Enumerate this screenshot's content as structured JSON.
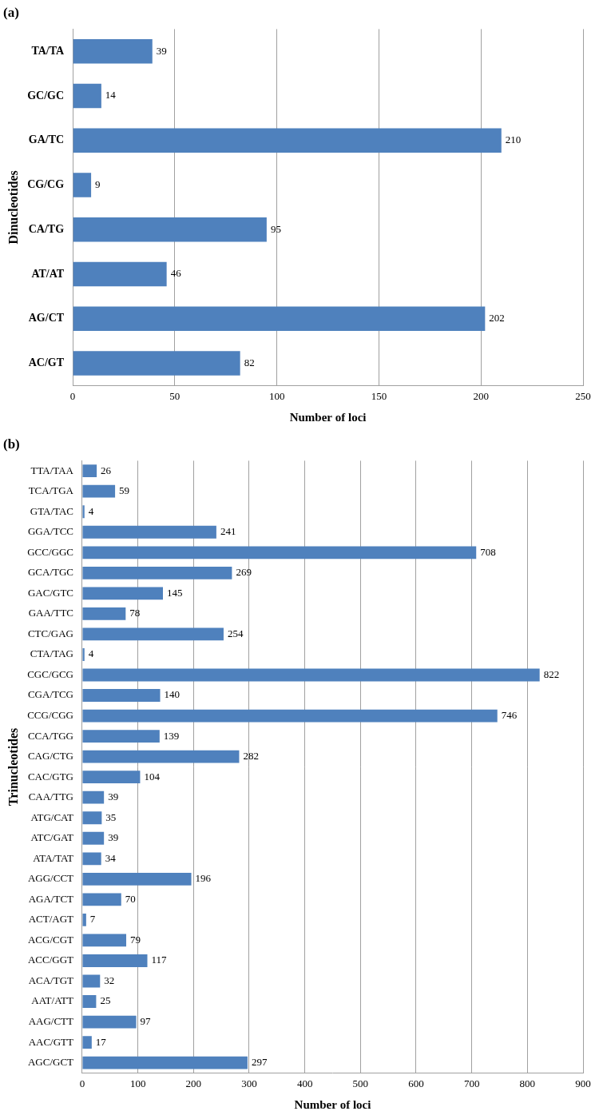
{
  "chart_data": [
    {
      "type": "bar",
      "title": "(a)",
      "orientation": "horizontal",
      "xlabel": "Number of loci",
      "ylabel": "Dinucleotides",
      "categories": [
        "TA/TA",
        "GC/GC",
        "GA/TC",
        "CG/CG",
        "CA/TG",
        "AT/AT",
        "AG/CT",
        "AC/GT"
      ],
      "values": [
        39,
        14,
        210,
        9,
        95,
        46,
        202,
        82
      ],
      "color": "#4f81bd",
      "xlim": [
        0,
        250
      ],
      "xticks": [
        0,
        50,
        100,
        150,
        200,
        250
      ],
      "grid": true,
      "data_labels": true
    },
    {
      "type": "bar",
      "title": "(b)",
      "orientation": "horizontal",
      "xlabel": "Number of loci",
      "ylabel": "Trinucleotides",
      "categories": [
        "TTA/TAA",
        "TCA/TGA",
        "GTA/TAC",
        "GGA/TCC",
        "GCC/GGC",
        "GCA/TGC",
        "GAC/GTC",
        "GAA/TTC",
        "CTC/GAG",
        "CTA/TAG",
        "CGC/GCG",
        "CGA/TCG",
        "CCG/CGG",
        "CCA/TGG",
        "CAG/CTG",
        "CAC/GTG",
        "CAA/TTG",
        "ATG/CAT",
        "ATC/GAT",
        "ATA/TAT",
        "AGG/CCT",
        "AGA/TCT",
        "ACT/AGT",
        "ACG/CGT",
        "ACC/GGT",
        "ACA/TGT",
        "AAT/ATT",
        "AAG/CTT",
        "AAC/GTT",
        "AGC/GCT"
      ],
      "values": [
        26,
        59,
        4,
        241,
        708,
        269,
        145,
        78,
        254,
        4,
        822,
        140,
        746,
        139,
        282,
        104,
        39,
        35,
        39,
        34,
        196,
        70,
        7,
        79,
        117,
        32,
        25,
        97,
        17,
        297
      ],
      "color": "#4f81bd",
      "xlim": [
        0,
        900
      ],
      "xticks": [
        0,
        100,
        200,
        300,
        400,
        500,
        600,
        700,
        800,
        900
      ],
      "grid": true,
      "data_labels": true
    }
  ]
}
